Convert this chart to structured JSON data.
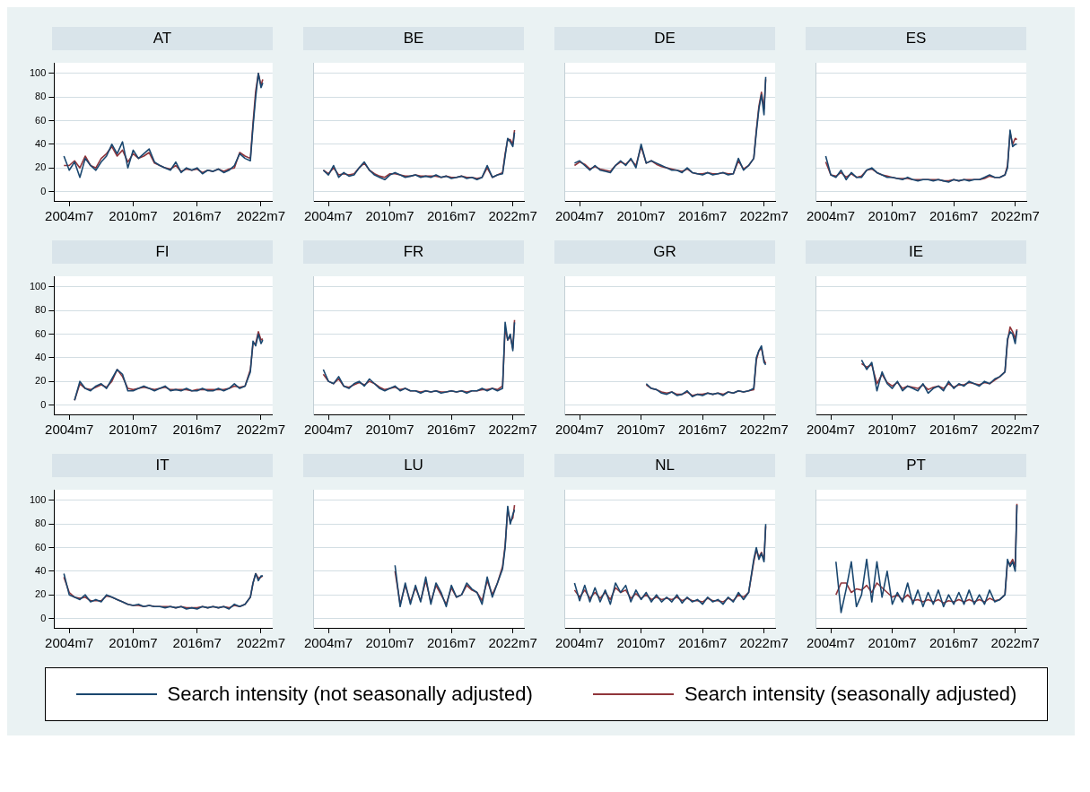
{
  "chart_data": [
    {
      "type": "line",
      "title": "AT",
      "legend": "bottom",
      "x": [
        "2004-01",
        "2004-07",
        "2005-01",
        "2005-07",
        "2006-01",
        "2006-07",
        "2007-01",
        "2007-07",
        "2008-01",
        "2008-07",
        "2009-01",
        "2009-07",
        "2010-01",
        "2010-07",
        "2011-01",
        "2011-07",
        "2012-01",
        "2012-07",
        "2013-01",
        "2013-07",
        "2014-01",
        "2014-07",
        "2015-01",
        "2015-07",
        "2016-01",
        "2016-07",
        "2017-01",
        "2017-07",
        "2018-01",
        "2018-07",
        "2019-01",
        "2019-07",
        "2020-01",
        "2020-07",
        "2021-01",
        "2021-07",
        "2021-10",
        "2022-01",
        "2022-04",
        "2022-07",
        "2022-09"
      ],
      "xlim": [
        "2003-02",
        "2023-08"
      ],
      "xticks": [
        {
          "value": "2004-07",
          "label": "2004m7"
        },
        {
          "value": "2010-07",
          "label": "2010m7"
        },
        {
          "value": "2016-07",
          "label": "2016m7"
        },
        {
          "value": "2022-07",
          "label": "2022m7"
        }
      ],
      "ylim": [
        -8,
        109
      ],
      "yticks": [
        0,
        20,
        40,
        60,
        80,
        100
      ],
      "grid": "y",
      "series": [
        {
          "name": "Search intensity (not seasonally adjusted)",
          "color": "#1a476f",
          "values": [
            30,
            18,
            25,
            12,
            28,
            22,
            18,
            25,
            30,
            40,
            32,
            42,
            20,
            35,
            28,
            32,
            36,
            25,
            22,
            20,
            18,
            25,
            16,
            20,
            18,
            20,
            15,
            18,
            17,
            19,
            16,
            18,
            22,
            32,
            28,
            26,
            55,
            80,
            100,
            88,
            92
          ]
        },
        {
          "name": "Search intensity (seasonally adjusted)",
          "color": "#90353b",
          "values": [
            22,
            22,
            26,
            20,
            30,
            22,
            20,
            28,
            32,
            38,
            30,
            35,
            25,
            32,
            28,
            30,
            33,
            24,
            22,
            20,
            19,
            22,
            17,
            19,
            18,
            19,
            16,
            18,
            17,
            19,
            17,
            19,
            20,
            33,
            30,
            28,
            58,
            85,
            100,
            90,
            95
          ]
        }
      ]
    },
    {
      "type": "line",
      "title": "BE",
      "tick_labels": "x",
      "x": [
        "2004-01",
        "2004-07",
        "2005-01",
        "2005-07",
        "2006-01",
        "2006-07",
        "2007-01",
        "2007-07",
        "2008-01",
        "2008-07",
        "2009-01",
        "2009-07",
        "2010-01",
        "2010-07",
        "2011-01",
        "2011-07",
        "2012-01",
        "2012-07",
        "2013-01",
        "2013-07",
        "2014-01",
        "2014-07",
        "2015-01",
        "2015-07",
        "2016-01",
        "2016-07",
        "2017-01",
        "2017-07",
        "2018-01",
        "2018-07",
        "2019-01",
        "2019-07",
        "2020-01",
        "2020-07",
        "2021-01",
        "2021-07",
        "2021-10",
        "2022-01",
        "2022-04",
        "2022-07",
        "2022-09"
      ],
      "xlim": [
        "2003-02",
        "2023-08"
      ],
      "xticks": [
        {
          "value": "2004-07",
          "label": "2004m7"
        },
        {
          "value": "2010-07",
          "label": "2010m7"
        },
        {
          "value": "2016-07",
          "label": "2016m7"
        },
        {
          "value": "2022-07",
          "label": "2022m7"
        }
      ],
      "ylim": [
        -8,
        109
      ],
      "yticks": [
        0,
        20,
        40,
        60,
        80,
        100
      ],
      "grid": "y",
      "series": [
        {
          "color": "#1a476f",
          "values": [
            18,
            14,
            22,
            12,
            16,
            13,
            14,
            20,
            25,
            18,
            14,
            12,
            10,
            14,
            16,
            14,
            12,
            13,
            14,
            12,
            13,
            12,
            14,
            12,
            13,
            11,
            12,
            13,
            11,
            12,
            10,
            12,
            22,
            12,
            14,
            15,
            30,
            45,
            42,
            38,
            50
          ]
        },
        {
          "color": "#90353b",
          "values": [
            18,
            15,
            20,
            14,
            15,
            14,
            15,
            20,
            24,
            18,
            15,
            13,
            12,
            15,
            15,
            14,
            13,
            13,
            14,
            13,
            13,
            13,
            13,
            12,
            13,
            12,
            12,
            13,
            12,
            12,
            11,
            12,
            20,
            12,
            14,
            16,
            32,
            44,
            44,
            40,
            52
          ]
        }
      ]
    },
    {
      "type": "line",
      "title": "DE",
      "tick_labels": "x",
      "x": [
        "2004-01",
        "2004-07",
        "2005-01",
        "2005-07",
        "2006-01",
        "2006-07",
        "2007-01",
        "2007-07",
        "2008-01",
        "2008-07",
        "2009-01",
        "2009-07",
        "2010-01",
        "2010-07",
        "2011-01",
        "2011-07",
        "2012-01",
        "2012-07",
        "2013-01",
        "2013-07",
        "2014-01",
        "2014-07",
        "2015-01",
        "2015-07",
        "2016-01",
        "2016-07",
        "2017-01",
        "2017-07",
        "2018-01",
        "2018-07",
        "2019-01",
        "2019-07",
        "2020-01",
        "2020-07",
        "2021-01",
        "2021-07",
        "2021-10",
        "2022-01",
        "2022-04",
        "2022-07",
        "2022-09"
      ],
      "xlim": [
        "2003-02",
        "2023-08"
      ],
      "xticks": [
        {
          "value": "2004-07",
          "label": "2004m7"
        },
        {
          "value": "2010-07",
          "label": "2010m7"
        },
        {
          "value": "2016-07",
          "label": "2016m7"
        },
        {
          "value": "2022-07",
          "label": "2022m7"
        }
      ],
      "ylim": [
        -8,
        109
      ],
      "yticks": [
        0,
        20,
        40,
        60,
        80,
        100
      ],
      "grid": "y",
      "series": [
        {
          "color": "#1a476f",
          "values": [
            24,
            26,
            22,
            18,
            22,
            18,
            17,
            16,
            22,
            26,
            22,
            28,
            20,
            40,
            24,
            26,
            24,
            22,
            20,
            18,
            18,
            16,
            20,
            16,
            15,
            14,
            16,
            14,
            15,
            16,
            14,
            15,
            28,
            18,
            22,
            28,
            50,
            70,
            82,
            65,
            97
          ]
        },
        {
          "color": "#90353b",
          "values": [
            22,
            25,
            23,
            19,
            21,
            19,
            18,
            17,
            22,
            25,
            23,
            27,
            22,
            38,
            24,
            26,
            23,
            21,
            20,
            19,
            18,
            17,
            19,
            16,
            15,
            15,
            16,
            15,
            15,
            16,
            15,
            15,
            26,
            19,
            22,
            28,
            52,
            72,
            84,
            70,
            95
          ]
        }
      ]
    },
    {
      "type": "line",
      "title": "ES",
      "tick_labels": "x",
      "x": [
        "2004-01",
        "2004-07",
        "2005-01",
        "2005-07",
        "2006-01",
        "2006-07",
        "2007-01",
        "2007-07",
        "2008-01",
        "2008-07",
        "2009-01",
        "2009-07",
        "2010-01",
        "2010-07",
        "2011-01",
        "2011-07",
        "2012-01",
        "2012-07",
        "2013-01",
        "2013-07",
        "2014-01",
        "2014-07",
        "2015-01",
        "2015-07",
        "2016-01",
        "2016-07",
        "2017-01",
        "2017-07",
        "2018-01",
        "2018-07",
        "2019-01",
        "2019-07",
        "2020-01",
        "2020-07",
        "2021-01",
        "2021-07",
        "2021-10",
        "2022-01",
        "2022-04",
        "2022-07",
        "2022-09"
      ],
      "xlim": [
        "2003-02",
        "2023-08"
      ],
      "xticks": [
        {
          "value": "2004-07",
          "label": "2004m7"
        },
        {
          "value": "2010-07",
          "label": "2010m7"
        },
        {
          "value": "2016-07",
          "label": "2016m7"
        },
        {
          "value": "2022-07",
          "label": "2022m7"
        }
      ],
      "ylim": [
        -8,
        109
      ],
      "yticks": [
        0,
        20,
        40,
        60,
        80,
        100
      ],
      "grid": "y",
      "series": [
        {
          "color": "#1a476f",
          "values": [
            30,
            14,
            12,
            18,
            10,
            16,
            12,
            12,
            18,
            20,
            16,
            14,
            12,
            12,
            11,
            10,
            12,
            10,
            9,
            10,
            10,
            9,
            10,
            9,
            8,
            10,
            9,
            10,
            9,
            10,
            10,
            12,
            14,
            12,
            12,
            14,
            20,
            52,
            38,
            40,
            40
          ]
        },
        {
          "color": "#90353b",
          "values": [
            25,
            14,
            13,
            16,
            12,
            15,
            12,
            13,
            18,
            19,
            16,
            14,
            13,
            12,
            11,
            11,
            11,
            10,
            10,
            10,
            10,
            10,
            10,
            9,
            9,
            10,
            9,
            10,
            10,
            10,
            10,
            11,
            13,
            12,
            12,
            14,
            22,
            50,
            40,
            45,
            44
          ]
        }
      ]
    },
    {
      "type": "line",
      "title": "FI",
      "x": [
        "2005-01",
        "2005-07",
        "2006-01",
        "2006-07",
        "2007-01",
        "2007-07",
        "2008-01",
        "2008-07",
        "2009-01",
        "2009-07",
        "2010-01",
        "2010-07",
        "2011-01",
        "2011-07",
        "2012-01",
        "2012-07",
        "2013-01",
        "2013-07",
        "2014-01",
        "2014-07",
        "2015-01",
        "2015-07",
        "2016-01",
        "2016-07",
        "2017-01",
        "2017-07",
        "2018-01",
        "2018-07",
        "2019-01",
        "2019-07",
        "2020-01",
        "2020-07",
        "2021-01",
        "2021-07",
        "2021-10",
        "2022-01",
        "2022-04",
        "2022-07",
        "2022-09"
      ],
      "xlim": [
        "2003-02",
        "2023-08"
      ],
      "xticks": [
        {
          "value": "2004-07",
          "label": "2004m7"
        },
        {
          "value": "2010-07",
          "label": "2010m7"
        },
        {
          "value": "2016-07",
          "label": "2016m7"
        },
        {
          "value": "2022-07",
          "label": "2022m7"
        }
      ],
      "ylim": [
        -8,
        109
      ],
      "yticks": [
        0,
        20,
        40,
        60,
        80,
        100
      ],
      "grid": "y",
      "series": [
        {
          "color": "#1a476f",
          "values": [
            4,
            20,
            14,
            12,
            16,
            18,
            14,
            22,
            30,
            26,
            12,
            12,
            14,
            16,
            14,
            12,
            14,
            16,
            12,
            13,
            12,
            14,
            12,
            12,
            14,
            12,
            12,
            14,
            12,
            14,
            18,
            14,
            16,
            28,
            54,
            50,
            60,
            52,
            55
          ]
        },
        {
          "color": "#90353b",
          "values": [
            4,
            18,
            14,
            13,
            15,
            17,
            15,
            20,
            30,
            24,
            14,
            13,
            14,
            15,
            14,
            13,
            14,
            15,
            13,
            13,
            13,
            13,
            12,
            13,
            13,
            13,
            13,
            13,
            13,
            14,
            16,
            15,
            16,
            30,
            52,
            52,
            62,
            55,
            56
          ]
        }
      ]
    },
    {
      "type": "line",
      "title": "FR",
      "tick_labels": "x",
      "x": [
        "2004-01",
        "2004-07",
        "2005-01",
        "2005-07",
        "2006-01",
        "2006-07",
        "2007-01",
        "2007-07",
        "2008-01",
        "2008-07",
        "2009-01",
        "2009-07",
        "2010-01",
        "2010-07",
        "2011-01",
        "2011-07",
        "2012-01",
        "2012-07",
        "2013-01",
        "2013-07",
        "2014-01",
        "2014-07",
        "2015-01",
        "2015-07",
        "2016-01",
        "2016-07",
        "2017-01",
        "2017-07",
        "2018-01",
        "2018-07",
        "2019-01",
        "2019-07",
        "2020-01",
        "2020-07",
        "2021-01",
        "2021-07",
        "2021-10",
        "2022-01",
        "2022-04",
        "2022-07",
        "2022-09"
      ],
      "xlim": [
        "2003-02",
        "2023-08"
      ],
      "xticks": [
        {
          "value": "2004-07",
          "label": "2004m7"
        },
        {
          "value": "2010-07",
          "label": "2010m7"
        },
        {
          "value": "2016-07",
          "label": "2016m7"
        },
        {
          "value": "2022-07",
          "label": "2022m7"
        }
      ],
      "ylim": [
        -8,
        109
      ],
      "yticks": [
        0,
        20,
        40,
        60,
        80,
        100
      ],
      "grid": "y",
      "series": [
        {
          "color": "#1a476f",
          "values": [
            30,
            20,
            18,
            24,
            16,
            14,
            18,
            20,
            16,
            22,
            18,
            14,
            12,
            14,
            16,
            12,
            14,
            12,
            12,
            10,
            12,
            11,
            12,
            10,
            11,
            12,
            11,
            12,
            10,
            12,
            12,
            14,
            12,
            14,
            12,
            14,
            70,
            55,
            60,
            46,
            70
          ]
        },
        {
          "color": "#90353b",
          "values": [
            26,
            20,
            18,
            22,
            16,
            15,
            17,
            19,
            17,
            20,
            18,
            15,
            13,
            14,
            15,
            13,
            14,
            12,
            12,
            11,
            12,
            11,
            12,
            11,
            11,
            12,
            11,
            12,
            11,
            12,
            12,
            13,
            13,
            14,
            13,
            16,
            65,
            55,
            58,
            48,
            72
          ]
        }
      ]
    },
    {
      "type": "line",
      "title": "GR",
      "tick_labels": "x",
      "x": [
        "2011-01",
        "2011-07",
        "2012-01",
        "2012-07",
        "2013-01",
        "2013-07",
        "2014-01",
        "2014-07",
        "2015-01",
        "2015-07",
        "2016-01",
        "2016-07",
        "2017-01",
        "2017-07",
        "2018-01",
        "2018-07",
        "2019-01",
        "2019-07",
        "2020-01",
        "2020-07",
        "2021-01",
        "2021-07",
        "2021-10",
        "2022-01",
        "2022-04",
        "2022-07",
        "2022-09"
      ],
      "xlim": [
        "2003-02",
        "2023-08"
      ],
      "xticks": [
        {
          "value": "2004-07",
          "label": "2004m7"
        },
        {
          "value": "2010-07",
          "label": "2010m7"
        },
        {
          "value": "2016-07",
          "label": "2016m7"
        },
        {
          "value": "2022-07",
          "label": "2022m7"
        }
      ],
      "ylim": [
        -8,
        109
      ],
      "yticks": [
        0,
        20,
        40,
        60,
        80,
        100
      ],
      "grid": "y",
      "series": [
        {
          "color": "#1a476f",
          "values": [
            18,
            14,
            13,
            10,
            9,
            11,
            8,
            9,
            12,
            7,
            9,
            8,
            10,
            9,
            10,
            8,
            11,
            10,
            12,
            11,
            12,
            14,
            40,
            46,
            50,
            36,
            34
          ]
        },
        {
          "color": "#90353b",
          "values": [
            17,
            14,
            13,
            11,
            10,
            11,
            9,
            9,
            11,
            8,
            9,
            9,
            10,
            9,
            10,
            9,
            11,
            10,
            12,
            11,
            12,
            13,
            38,
            46,
            48,
            38,
            35
          ]
        }
      ]
    },
    {
      "type": "line",
      "title": "IE",
      "tick_labels": "x",
      "x": [
        "2007-07",
        "2008-01",
        "2008-07",
        "2009-01",
        "2009-07",
        "2010-01",
        "2010-07",
        "2011-01",
        "2011-07",
        "2012-01",
        "2012-07",
        "2013-01",
        "2013-07",
        "2014-01",
        "2014-07",
        "2015-01",
        "2015-07",
        "2016-01",
        "2016-07",
        "2017-01",
        "2017-07",
        "2018-01",
        "2018-07",
        "2019-01",
        "2019-07",
        "2020-01",
        "2020-07",
        "2021-01",
        "2021-07",
        "2021-10",
        "2022-01",
        "2022-04",
        "2022-07",
        "2022-09"
      ],
      "xlim": [
        "2003-02",
        "2023-08"
      ],
      "xticks": [
        {
          "value": "2004-07",
          "label": "2004m7"
        },
        {
          "value": "2010-07",
          "label": "2010m7"
        },
        {
          "value": "2016-07",
          "label": "2016m7"
        },
        {
          "value": "2022-07",
          "label": "2022m7"
        }
      ],
      "ylim": [
        -8,
        109
      ],
      "yticks": [
        0,
        20,
        40,
        60,
        80,
        100
      ],
      "grid": "y",
      "series": [
        {
          "color": "#1a476f",
          "values": [
            38,
            30,
            36,
            12,
            28,
            18,
            14,
            20,
            12,
            16,
            14,
            12,
            18,
            10,
            14,
            16,
            12,
            20,
            14,
            18,
            16,
            20,
            18,
            16,
            20,
            18,
            22,
            24,
            28,
            56,
            62,
            60,
            52,
            63
          ]
        },
        {
          "color": "#90353b",
          "values": [
            35,
            32,
            34,
            18,
            26,
            19,
            16,
            19,
            14,
            16,
            15,
            14,
            17,
            13,
            15,
            16,
            14,
            18,
            15,
            17,
            17,
            19,
            18,
            17,
            19,
            18,
            21,
            24,
            28,
            54,
            66,
            62,
            56,
            64
          ]
        }
      ]
    },
    {
      "type": "line",
      "title": "IT",
      "x": [
        "2004-01",
        "2004-07",
        "2005-01",
        "2005-07",
        "2006-01",
        "2006-07",
        "2007-01",
        "2007-07",
        "2008-01",
        "2008-07",
        "2009-01",
        "2009-07",
        "2010-01",
        "2010-07",
        "2011-01",
        "2011-07",
        "2012-01",
        "2012-07",
        "2013-01",
        "2013-07",
        "2014-01",
        "2014-07",
        "2015-01",
        "2015-07",
        "2016-01",
        "2016-07",
        "2017-01",
        "2017-07",
        "2018-01",
        "2018-07",
        "2019-01",
        "2019-07",
        "2020-01",
        "2020-07",
        "2021-01",
        "2021-07",
        "2021-10",
        "2022-01",
        "2022-04",
        "2022-07",
        "2022-09"
      ],
      "xlim": [
        "2003-02",
        "2023-08"
      ],
      "xticks": [
        {
          "value": "2004-07",
          "label": "2004m7"
        },
        {
          "value": "2010-07",
          "label": "2010m7"
        },
        {
          "value": "2016-07",
          "label": "2016m7"
        },
        {
          "value": "2022-07",
          "label": "2022m7"
        }
      ],
      "ylim": [
        -8,
        109
      ],
      "yticks": [
        0,
        20,
        40,
        60,
        80,
        100
      ],
      "grid": "y",
      "series": [
        {
          "color": "#1a476f",
          "values": [
            38,
            20,
            18,
            16,
            20,
            14,
            16,
            14,
            20,
            18,
            16,
            14,
            12,
            11,
            12,
            10,
            11,
            10,
            10,
            9,
            10,
            9,
            10,
            8,
            9,
            8,
            10,
            9,
            10,
            9,
            10,
            8,
            12,
            10,
            12,
            18,
            30,
            38,
            32,
            36,
            36
          ]
        },
        {
          "color": "#90353b",
          "values": [
            35,
            22,
            18,
            17,
            18,
            15,
            15,
            15,
            19,
            18,
            16,
            14,
            12,
            11,
            11,
            10,
            11,
            10,
            10,
            10,
            10,
            9,
            10,
            9,
            9,
            9,
            10,
            9,
            10,
            9,
            10,
            9,
            11,
            10,
            12,
            18,
            30,
            38,
            34,
            35,
            36
          ]
        }
      ]
    },
    {
      "type": "line",
      "title": "LU",
      "tick_labels": "x",
      "x": [
        "2011-01",
        "2011-07",
        "2012-01",
        "2012-07",
        "2013-01",
        "2013-07",
        "2014-01",
        "2014-07",
        "2015-01",
        "2015-07",
        "2016-01",
        "2016-07",
        "2017-01",
        "2017-07",
        "2018-01",
        "2018-07",
        "2019-01",
        "2019-07",
        "2020-01",
        "2020-07",
        "2021-01",
        "2021-07",
        "2021-10",
        "2022-01",
        "2022-04",
        "2022-07",
        "2022-09"
      ],
      "xlim": [
        "2003-02",
        "2023-08"
      ],
      "xticks": [
        {
          "value": "2004-07",
          "label": "2004m7"
        },
        {
          "value": "2010-07",
          "label": "2010m7"
        },
        {
          "value": "2016-07",
          "label": "2016m7"
        },
        {
          "value": "2022-07",
          "label": "2022m7"
        }
      ],
      "ylim": [
        -8,
        109
      ],
      "yticks": [
        0,
        20,
        40,
        60,
        80,
        100
      ],
      "grid": "y",
      "series": [
        {
          "color": "#1a476f",
          "values": [
            45,
            10,
            30,
            12,
            28,
            14,
            35,
            12,
            30,
            22,
            10,
            28,
            18,
            20,
            30,
            25,
            22,
            12,
            35,
            18,
            30,
            42,
            60,
            95,
            80,
            88,
            92
          ]
        },
        {
          "color": "#90353b",
          "values": [
            40,
            12,
            28,
            14,
            26,
            15,
            32,
            14,
            28,
            20,
            12,
            26,
            18,
            20,
            28,
            24,
            22,
            15,
            32,
            20,
            30,
            44,
            62,
            92,
            82,
            85,
            96
          ]
        }
      ]
    },
    {
      "type": "line",
      "title": "NL",
      "tick_labels": "x",
      "x": [
        "2004-01",
        "2004-07",
        "2005-01",
        "2005-07",
        "2006-01",
        "2006-07",
        "2007-01",
        "2007-07",
        "2008-01",
        "2008-07",
        "2009-01",
        "2009-07",
        "2010-01",
        "2010-07",
        "2011-01",
        "2011-07",
        "2012-01",
        "2012-07",
        "2013-01",
        "2013-07",
        "2014-01",
        "2014-07",
        "2015-01",
        "2015-07",
        "2016-01",
        "2016-07",
        "2017-01",
        "2017-07",
        "2018-01",
        "2018-07",
        "2019-01",
        "2019-07",
        "2020-01",
        "2020-07",
        "2021-01",
        "2021-07",
        "2021-10",
        "2022-01",
        "2022-04",
        "2022-07",
        "2022-09"
      ],
      "xlim": [
        "2003-02",
        "2023-08"
      ],
      "xticks": [
        {
          "value": "2004-07",
          "label": "2004m7"
        },
        {
          "value": "2010-07",
          "label": "2010m7"
        },
        {
          "value": "2016-07",
          "label": "2016m7"
        },
        {
          "value": "2022-07",
          "label": "2022m7"
        }
      ],
      "ylim": [
        -8,
        109
      ],
      "yticks": [
        0,
        20,
        40,
        60,
        80,
        100
      ],
      "grid": "y",
      "series": [
        {
          "color": "#1a476f",
          "values": [
            30,
            15,
            28,
            14,
            26,
            14,
            24,
            12,
            30,
            22,
            28,
            14,
            24,
            16,
            22,
            14,
            20,
            14,
            18,
            14,
            20,
            13,
            18,
            14,
            16,
            12,
            18,
            14,
            16,
            12,
            18,
            14,
            22,
            16,
            22,
            50,
            60,
            50,
            55,
            48,
            80
          ]
        },
        {
          "color": "#90353b",
          "values": [
            24,
            18,
            24,
            17,
            22,
            17,
            22,
            16,
            26,
            22,
            24,
            17,
            21,
            17,
            20,
            16,
            18,
            16,
            17,
            16,
            18,
            15,
            17,
            15,
            15,
            14,
            17,
            15,
            15,
            14,
            17,
            15,
            20,
            18,
            22,
            48,
            58,
            52,
            56,
            50,
            78
          ]
        }
      ]
    },
    {
      "type": "line",
      "title": "PT",
      "tick_labels": "x",
      "x": [
        "2005-01",
        "2005-07",
        "2006-01",
        "2006-07",
        "2007-01",
        "2007-07",
        "2008-01",
        "2008-07",
        "2009-01",
        "2009-07",
        "2010-01",
        "2010-07",
        "2011-01",
        "2011-07",
        "2012-01",
        "2012-07",
        "2013-01",
        "2013-07",
        "2014-01",
        "2014-07",
        "2015-01",
        "2015-07",
        "2016-01",
        "2016-07",
        "2017-01",
        "2017-07",
        "2018-01",
        "2018-07",
        "2019-01",
        "2019-07",
        "2020-01",
        "2020-07",
        "2021-01",
        "2021-07",
        "2021-10",
        "2022-01",
        "2022-04",
        "2022-07",
        "2022-09"
      ],
      "xlim": [
        "2003-02",
        "2023-08"
      ],
      "xticks": [
        {
          "value": "2004-07",
          "label": "2004m7"
        },
        {
          "value": "2010-07",
          "label": "2010m7"
        },
        {
          "value": "2016-07",
          "label": "2016m7"
        },
        {
          "value": "2022-07",
          "label": "2022m7"
        }
      ],
      "ylim": [
        -8,
        109
      ],
      "yticks": [
        0,
        20,
        40,
        60,
        80,
        100
      ],
      "grid": "y",
      "series": [
        {
          "color": "#1a476f",
          "values": [
            48,
            5,
            25,
            48,
            10,
            20,
            50,
            14,
            48,
            18,
            40,
            12,
            22,
            14,
            30,
            12,
            24,
            10,
            22,
            12,
            24,
            10,
            20,
            12,
            22,
            12,
            24,
            12,
            20,
            12,
            24,
            14,
            16,
            20,
            50,
            44,
            48,
            40,
            96
          ]
        },
        {
          "color": "#90353b",
          "values": [
            20,
            30,
            30,
            22,
            25,
            24,
            28,
            22,
            30,
            26,
            22,
            18,
            20,
            16,
            20,
            15,
            16,
            14,
            16,
            14,
            16,
            13,
            15,
            14,
            16,
            14,
            16,
            14,
            16,
            14,
            17,
            15,
            16,
            20,
            48,
            46,
            50,
            44,
            97
          ]
        }
      ]
    }
  ]
}
